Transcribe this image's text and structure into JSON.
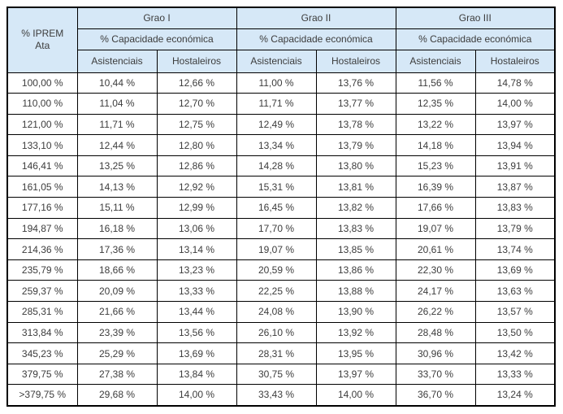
{
  "table": {
    "corner": {
      "line1": "% IPREM",
      "line2": "Ata"
    },
    "groups": [
      {
        "label": "Grao I",
        "subheader": "% Capacidade económica",
        "columns": [
          "Asistenciais",
          "Hostaleiros"
        ]
      },
      {
        "label": "Grao II",
        "subheader": "% Capacidade económica",
        "columns": [
          "Asistenciais",
          "Hostaleiros"
        ]
      },
      {
        "label": "Grao III",
        "subheader": "% Capacidade económica",
        "columns": [
          "Asistenciais",
          "Hostaleiros"
        ]
      }
    ],
    "rows": [
      [
        "100,00 %",
        "10,44 %",
        "12,66 %",
        "11,00 %",
        "13,76 %",
        "11,56 %",
        "14,78 %"
      ],
      [
        "110,00 %",
        "11,04 %",
        "12,70 %",
        "11,71 %",
        "13,77 %",
        "12,35 %",
        "14,00 %"
      ],
      [
        "121,00 %",
        "11,71 %",
        "12,75 %",
        "12,49 %",
        "13,78 %",
        "13,22 %",
        "13,97 %"
      ],
      [
        "133,10 %",
        "12,44 %",
        "12,80 %",
        "13,34 %",
        "13,79 %",
        "14,18 %",
        "13,94 %"
      ],
      [
        "146,41 %",
        "13,25 %",
        "12,86 %",
        "14,28 %",
        "13,80 %",
        "15,23 %",
        "13,91 %"
      ],
      [
        "161,05 %",
        "14,13 %",
        "12,92 %",
        "15,31 %",
        "13,81 %",
        "16,39 %",
        "13,87 %"
      ],
      [
        "177,16 %",
        "15,11 %",
        "12,99 %",
        "16,45 %",
        "13,82 %",
        "17,66 %",
        "13,83 %"
      ],
      [
        "194,87 %",
        "16,18 %",
        "13,06 %",
        "17,70 %",
        "13,83 %",
        "19,07 %",
        "13,79 %"
      ],
      [
        "214,36 %",
        "17,36 %",
        "13,14 %",
        "19,07 %",
        "13,85 %",
        "20,61 %",
        "13,74 %"
      ],
      [
        "235,79 %",
        "18,66 %",
        "13,23 %",
        "20,59 %",
        "13,86 %",
        "22,30 %",
        "13,69 %"
      ],
      [
        "259,37 %",
        "20,09 %",
        "13,33 %",
        "22,25 %",
        "13,88 %",
        "24,17 %",
        "13,63 %"
      ],
      [
        "285,31 %",
        "21,66 %",
        "13,44 %",
        "24,08 %",
        "13,90 %",
        "26,22 %",
        "13,57 %"
      ],
      [
        "313,84 %",
        "23,39 %",
        "13,56 %",
        "26,10 %",
        "13,92 %",
        "28,48 %",
        "13,50 %"
      ],
      [
        "345,23 %",
        "25,29 %",
        "13,69 %",
        "28,31 %",
        "13,95 %",
        "30,96 %",
        "13,42 %"
      ],
      [
        "379,75 %",
        "27,38 %",
        "13,84 %",
        "30,75 %",
        "13,97 %",
        "33,70 %",
        "13,33 %"
      ],
      [
        ">379,75 %",
        "29,68 %",
        "14,00 %",
        "33,43 %",
        "14,00 %",
        "36,70 %",
        "13,24 %"
      ]
    ]
  },
  "colors": {
    "header_background": "#d6e8f7",
    "border": "#000000",
    "text": "#3c3c3c",
    "page_background": "#ffffff"
  }
}
